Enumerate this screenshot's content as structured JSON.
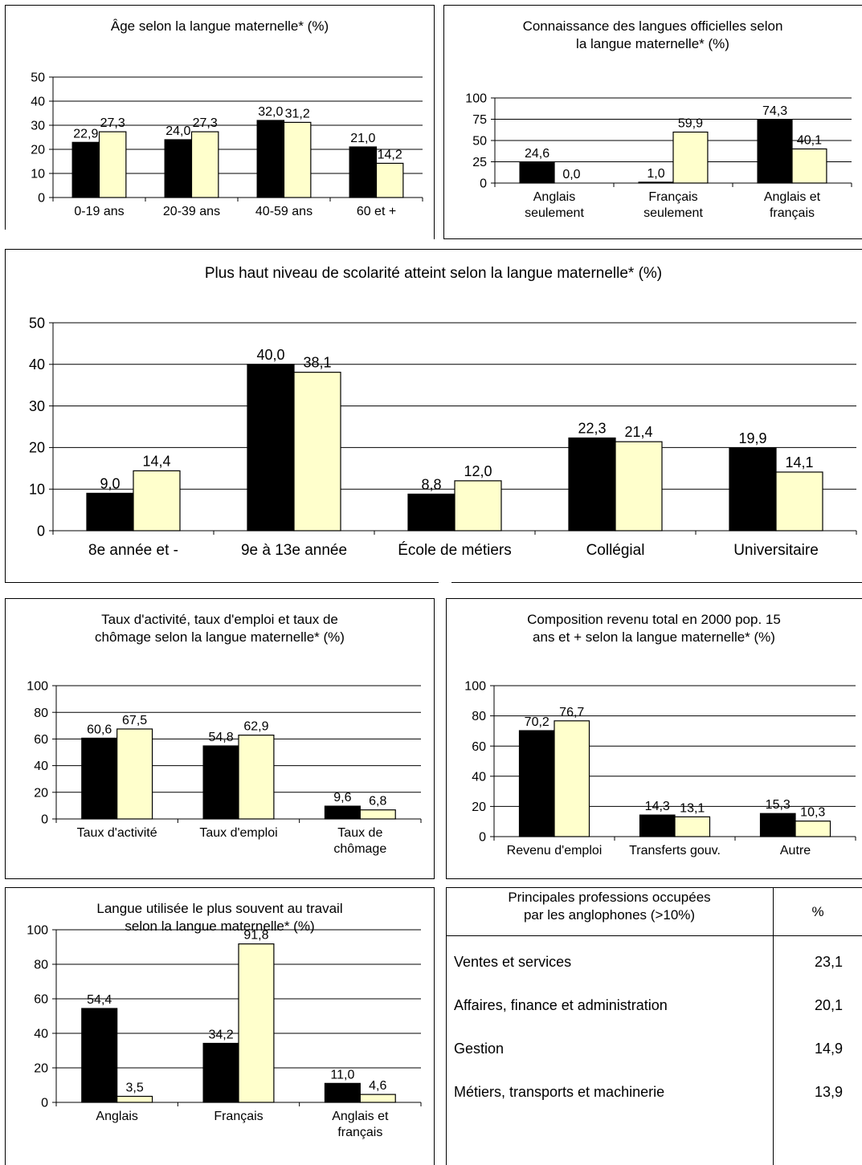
{
  "colors": {
    "series_a": "#000000",
    "series_b": "#ffffcc",
    "bar_stroke": "#000000",
    "gridline": "#000000"
  },
  "chart_data": [
    {
      "id": "age",
      "type": "bar",
      "title": "Âge selon la langue maternelle* (%)",
      "categories": [
        "0-19 ans",
        "20-39 ans",
        "40-59 ans",
        "60 et +"
      ],
      "series": [
        {
          "values": [
            22.9,
            24.0,
            32.0,
            21.0
          ],
          "labels": [
            "22,9",
            "24,0",
            "32,0",
            "21,0"
          ]
        },
        {
          "values": [
            27.3,
            27.3,
            31.2,
            14.2
          ],
          "labels": [
            "27,3",
            "27,3",
            "31,2",
            "14,2"
          ]
        }
      ],
      "ylim": [
        0,
        50
      ],
      "yticks": [
        "0",
        "10",
        "20",
        "30",
        "40",
        "50"
      ],
      "grid": true
    },
    {
      "id": "official-languages",
      "type": "bar",
      "title": "Connaissance des langues officielles selon\nla langue maternelle* (%)",
      "categories": [
        "Anglais\nseulement",
        "Français\nseulement",
        "Anglais et\nfrançais"
      ],
      "series": [
        {
          "values": [
            24.6,
            1.0,
            74.3
          ],
          "labels": [
            "24,6",
            "1,0",
            "74,3"
          ]
        },
        {
          "values": [
            0.0,
            59.9,
            40.1
          ],
          "labels": [
            "0,0",
            "59,9",
            "40,1"
          ]
        }
      ],
      "ylim": [
        0,
        100
      ],
      "yticks": [
        "0",
        "25",
        "50",
        "75",
        "100"
      ],
      "grid": true
    },
    {
      "id": "schooling",
      "type": "bar",
      "title": "Plus haut niveau de scolarité atteint selon la langue maternelle* (%)",
      "categories": [
        "8e année et -",
        "9e à 13e année",
        "École de métiers",
        "Collégial",
        "Universitaire"
      ],
      "series": [
        {
          "values": [
            9.0,
            40.0,
            8.8,
            22.3,
            19.9
          ],
          "labels": [
            "9,0",
            "40,0",
            "8,8",
            "22,3",
            "19,9"
          ]
        },
        {
          "values": [
            14.4,
            38.1,
            12.0,
            21.4,
            14.1
          ],
          "labels": [
            "14,4",
            "38,1",
            "12,0",
            "21,4",
            "14,1"
          ]
        }
      ],
      "ylim": [
        0,
        50
      ],
      "yticks": [
        "0",
        "10",
        "20",
        "30",
        "40",
        "50"
      ],
      "grid": true
    },
    {
      "id": "activity",
      "type": "bar",
      "title": "Taux d'activité, taux d'emploi et taux de\nchômage selon la langue maternelle* (%)",
      "categories": [
        "Taux d'activité",
        "Taux d'emploi",
        "Taux de\nchômage"
      ],
      "series": [
        {
          "values": [
            60.6,
            54.8,
            9.6
          ],
          "labels": [
            "60,6",
            "54,8",
            "9,6"
          ]
        },
        {
          "values": [
            67.5,
            62.9,
            6.8
          ],
          "labels": [
            "67,5",
            "62,9",
            "6,8"
          ]
        }
      ],
      "ylim": [
        0,
        100
      ],
      "yticks": [
        "0",
        "20",
        "40",
        "60",
        "80",
        "100"
      ],
      "grid": true
    },
    {
      "id": "income",
      "type": "bar",
      "title": "Composition revenu total en 2000 pop. 15\nans et + selon la langue maternelle* (%)",
      "categories": [
        "Revenu d'emploi",
        "Transferts gouv.",
        "Autre"
      ],
      "series": [
        {
          "values": [
            70.2,
            14.3,
            15.3
          ],
          "labels": [
            "70,2",
            "14,3",
            "15,3"
          ]
        },
        {
          "values": [
            76.7,
            13.1,
            10.3
          ],
          "labels": [
            "76,7",
            "13,1",
            "10,3"
          ]
        }
      ],
      "ylim": [
        0,
        100
      ],
      "yticks": [
        "0",
        "20",
        "40",
        "60",
        "80",
        "100"
      ],
      "grid": true
    },
    {
      "id": "work-language",
      "type": "bar",
      "title": "Langue utilisée le plus souvent au travail\nselon la langue maternelle* (%)",
      "categories": [
        "Anglais",
        "Français",
        "Anglais et\nfrançais"
      ],
      "series": [
        {
          "values": [
            54.4,
            34.2,
            11.0
          ],
          "labels": [
            "54,4",
            "34,2",
            "11,0"
          ]
        },
        {
          "values": [
            3.5,
            91.8,
            4.6
          ],
          "labels": [
            "3,5",
            "91,8",
            "4,6"
          ]
        }
      ],
      "ylim": [
        0,
        100
      ],
      "yticks": [
        "0",
        "20",
        "40",
        "60",
        "80",
        "100"
      ],
      "grid": true
    },
    {
      "id": "occupations",
      "type": "table",
      "header": [
        "Principales professions occupées\npar les anglophones (>10%)",
        "%"
      ],
      "rows": [
        [
          "Ventes et services",
          "23,1"
        ],
        [
          "Affaires, finance et administration",
          "20,1"
        ],
        [
          "Gestion",
          "14,9"
        ],
        [
          "Métiers, transports et machinerie",
          "13,9"
        ]
      ]
    }
  ]
}
